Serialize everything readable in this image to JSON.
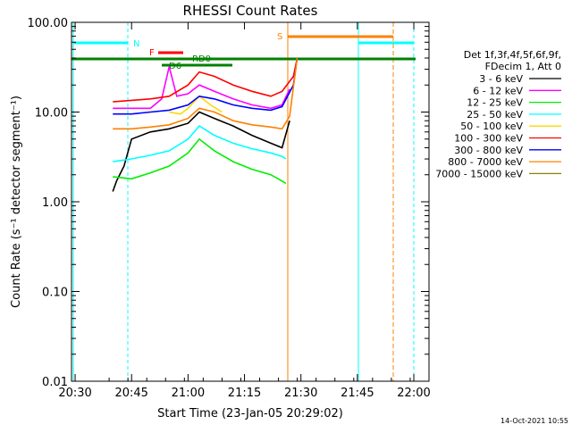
{
  "chart_data": {
    "type": "line",
    "title": "RHESSI Count Rates",
    "xlabel": "Start Time (23-Jan-05 20:29:02)",
    "ylabel": "Count Rate (s⁻¹ detector segment⁻¹)",
    "y_scale": "log",
    "ylim": [
      0.01,
      100
    ],
    "xlim_minutes_from_start": [
      0,
      95
    ],
    "x_ticks": [
      "20:30",
      "20:45",
      "21:00",
      "21:15",
      "21:30",
      "21:45",
      "22:00"
    ],
    "y_ticks": [
      "0.01",
      "0.10",
      "1.00",
      "10.00",
      "100.00"
    ],
    "grid": false,
    "legend_position": "right",
    "legend_header": [
      "Det 1f,3f,4f,5f,6f,9f,",
      "FDecim 1, Att 0"
    ],
    "timestamp": "14-Oct-2021 10:55",
    "series": [
      {
        "name": "3 - 6 keV",
        "color": "#000000",
        "x": [
          "20:40",
          "20:41",
          "20:43",
          "20:45",
          "20:50",
          "20:55",
          "21:00",
          "21:03",
          "21:07",
          "21:12",
          "21:17",
          "21:22",
          "21:25",
          "21:27"
        ],
        "y": [
          1.3,
          1.7,
          2.5,
          5,
          6,
          6.5,
          7.5,
          10,
          8.5,
          7,
          5.5,
          4.5,
          4,
          8
        ]
      },
      {
        "name": "6 - 12 keV",
        "color": "#ff00ff",
        "x": [
          "20:40",
          "20:45",
          "20:50",
          "20:53",
          "20:55",
          "20:57",
          "21:00",
          "21:03",
          "21:07",
          "21:12",
          "21:17",
          "21:22",
          "21:25",
          "21:27"
        ],
        "y": [
          11,
          11,
          11,
          14,
          32,
          15,
          16,
          20,
          17,
          14,
          12,
          11,
          12,
          18
        ]
      },
      {
        "name": "12 - 25 keV",
        "color": "#00ee00",
        "x": [
          "20:40",
          "20:45",
          "20:50",
          "20:55",
          "21:00",
          "21:03",
          "21:07",
          "21:12",
          "21:17",
          "21:22",
          "21:25",
          "21:26"
        ],
        "y": [
          1.9,
          1.8,
          2.1,
          2.5,
          3.5,
          5,
          3.7,
          2.8,
          2.3,
          2,
          1.7,
          1.6
        ]
      },
      {
        "name": "25 - 50 keV",
        "color": "#00ffff",
        "x": [
          "20:40",
          "20:45",
          "20:50",
          "20:55",
          "21:00",
          "21:03",
          "21:07",
          "21:12",
          "21:17",
          "21:22",
          "21:25",
          "21:26"
        ],
        "y": [
          2.8,
          3,
          3.3,
          3.7,
          5,
          7,
          5.5,
          4.5,
          3.9,
          3.5,
          3.2,
          3
        ]
      },
      {
        "name": "50 - 100 keV",
        "color": "#ffd700",
        "x": [
          "20:55",
          "20:58",
          "21:00",
          "21:03",
          "21:06",
          "21:09"
        ],
        "y": [
          10,
          9.5,
          11,
          15,
          12,
          10
        ]
      },
      {
        "name": "100 - 300 keV",
        "color": "#ff0000",
        "x": [
          "20:40",
          "20:45",
          "20:50",
          "20:55",
          "21:00",
          "21:03",
          "21:07",
          "21:12",
          "21:17",
          "21:22",
          "21:25",
          "21:28",
          "21:29"
        ],
        "y": [
          13,
          13.5,
          14,
          15,
          20,
          28,
          25,
          20,
          17,
          15,
          17,
          25,
          40
        ]
      },
      {
        "name": "300 - 800 keV",
        "color": "#0000ff",
        "x": [
          "20:40",
          "20:45",
          "20:50",
          "20:55",
          "21:00",
          "21:03",
          "21:07",
          "21:12",
          "21:17",
          "21:22",
          "21:25",
          "21:28",
          "21:29"
        ],
        "y": [
          9.5,
          9.5,
          10,
          10.5,
          12,
          15,
          14,
          12,
          11,
          10.5,
          11.5,
          20,
          40
        ]
      },
      {
        "name": "800 - 7000 keV",
        "color": "#ff8000",
        "x": [
          "20:40",
          "20:45",
          "20:50",
          "20:55",
          "21:00",
          "21:03",
          "21:07",
          "21:12",
          "21:17",
          "21:22",
          "21:25",
          "21:27",
          "21:29"
        ],
        "y": [
          6.5,
          6.5,
          6.8,
          7.2,
          8.5,
          11,
          10,
          8,
          7.2,
          6.8,
          6.5,
          9,
          40
        ]
      },
      {
        "name": "7000 - 15000 keV",
        "color": "#8b8000",
        "x": [],
        "y": []
      }
    ],
    "annotations": [
      {
        "text": "N",
        "color": "#00ffff"
      },
      {
        "text": "F",
        "color": "#ff0000"
      },
      {
        "text": "RD0",
        "color": "#008000"
      },
      {
        "text": "D6",
        "color": "#008000"
      },
      {
        "text": "S",
        "color": "#ff8000"
      }
    ]
  }
}
